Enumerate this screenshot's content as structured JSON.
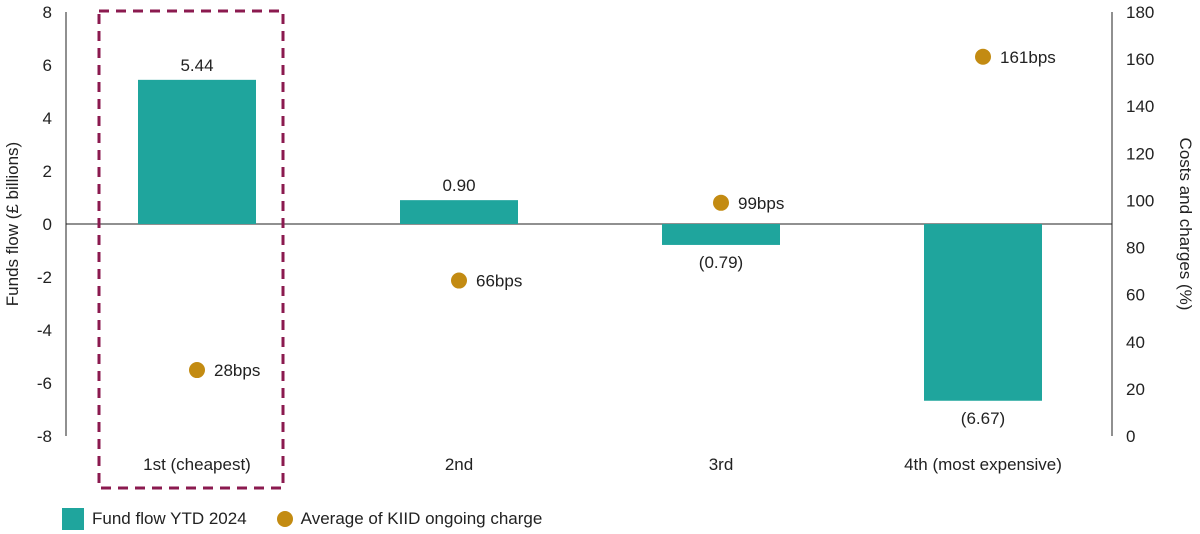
{
  "chart_data": {
    "type": "bar",
    "categories": [
      "1st (cheapest)",
      "2nd",
      "3rd",
      "4th (most expensive)"
    ],
    "series": [
      {
        "name": "Fund flow YTD 2024",
        "axis": "left",
        "values": [
          5.44,
          0.9,
          -0.79,
          -6.67
        ],
        "value_labels": [
          "5.44",
          "0.90",
          "(0.79)",
          "(6.67)"
        ],
        "color": "#1fa59d"
      },
      {
        "name": "Average of KIID ongoing charge",
        "axis": "right",
        "mark": "dot",
        "values": [
          28,
          66,
          99,
          161
        ],
        "value_labels": [
          "28bps",
          "66bps",
          "99bps",
          "161bps"
        ],
        "color": "#c38b12"
      }
    ],
    "ylabel": "Funds flow (£ billions)",
    "y2label": "Costs and charges (%)",
    "ylim": [
      -8,
      8
    ],
    "y2lim": [
      0,
      180
    ],
    "yticks": [
      "8",
      "6",
      "4",
      "2",
      "0",
      "-2",
      "-4",
      "-6",
      "-8"
    ],
    "y2ticks": [
      "180",
      "160",
      "140",
      "120",
      "100",
      "80",
      "60",
      "40",
      "20",
      "0"
    ],
    "highlight": {
      "category": "1st (cheapest)",
      "style": "dashed box",
      "color": "#8b1a4f"
    },
    "legend_position": "bottom-left",
    "grid": false
  },
  "legend": {
    "bar_label": "Fund flow YTD 2024",
    "dot_label": "Average of KIID ongoing charge"
  }
}
